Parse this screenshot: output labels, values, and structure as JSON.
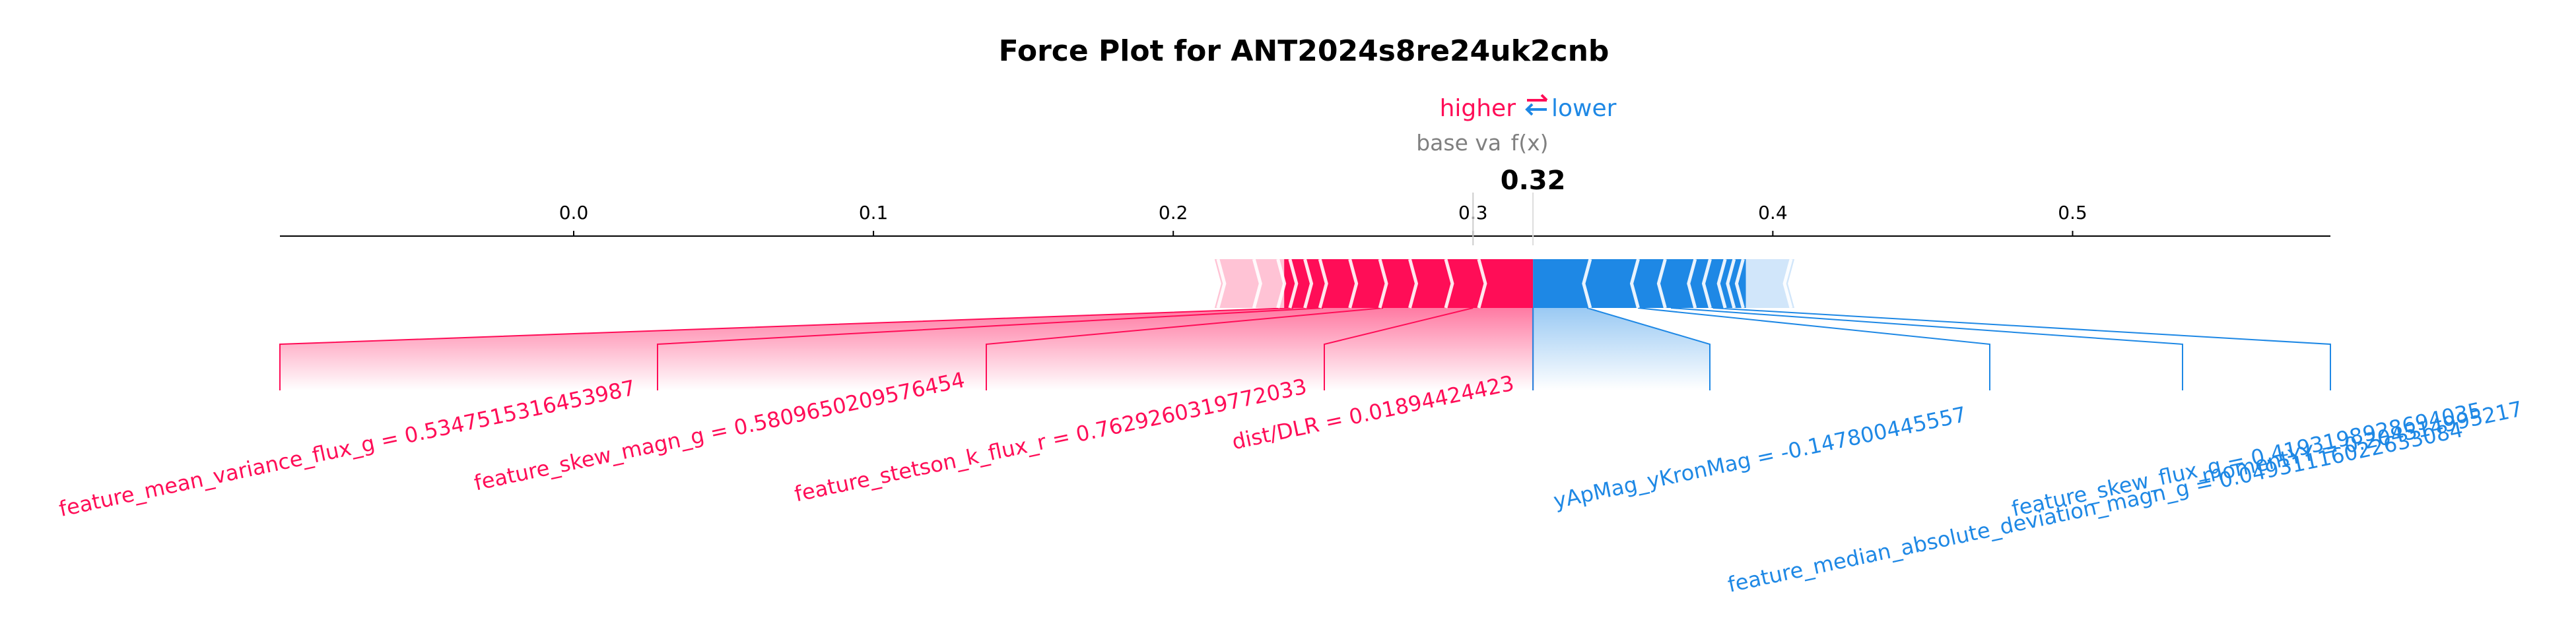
{
  "chart_data": {
    "type": "force",
    "title": "Force Plot for ANT2024s8re24uk2cnb",
    "legend": {
      "higher": "higher",
      "lower": "lower"
    },
    "labels": {
      "base_value": "base va",
      "fx": "f(x)"
    },
    "base_value": 0.3,
    "output_value": 0.32,
    "output_label": "0.32",
    "x_ticks": [
      0.0,
      0.1,
      0.2,
      0.3,
      0.4,
      0.5
    ],
    "x_tick_labels": [
      "0.0",
      "0.1",
      "0.2",
      "0.3",
      "0.4",
      "0.5"
    ],
    "xlim": [
      -0.098,
      0.586
    ],
    "colors": {
      "positive": "#ff0d57",
      "negative": "#1e88e5",
      "positive_light": "#ffc3d5",
      "negative_light": "#d1e6fa",
      "title": "#000000",
      "base_label": "#808080"
    },
    "positive_features": [
      {
        "label": "feature_mean_variance_flux_g = 0.5347515316453987"
      },
      {
        "label": "feature_skew_magn_g = 0.5809650209576454"
      },
      {
        "label": "feature_stetson_k_flux_r = 0.7629260319772033"
      },
      {
        "label": "dist/DLR = 0.01894424423"
      }
    ],
    "negative_features": [
      {
        "label": "yApMag_yKronMag = -0.147800445557"
      },
      {
        "label": "feature_median_absolute_deviation_magn_g = 0.04931116022633084"
      },
      {
        "label": "feature_skew_flux_g = 0.4193198928694035"
      },
      {
        "label": "momentYY = 0.204514995217"
      }
    ],
    "positive_segment_bounds": [
      0.216,
      0.228,
      0.236,
      0.24,
      0.245,
      0.25,
      0.26,
      0.27,
      0.28,
      0.292,
      0.303,
      0.32
    ],
    "negative_segment_bounds": [
      0.32,
      0.338,
      0.354,
      0.363,
      0.373,
      0.378,
      0.383,
      0.386,
      0.389,
      0.405
    ]
  }
}
